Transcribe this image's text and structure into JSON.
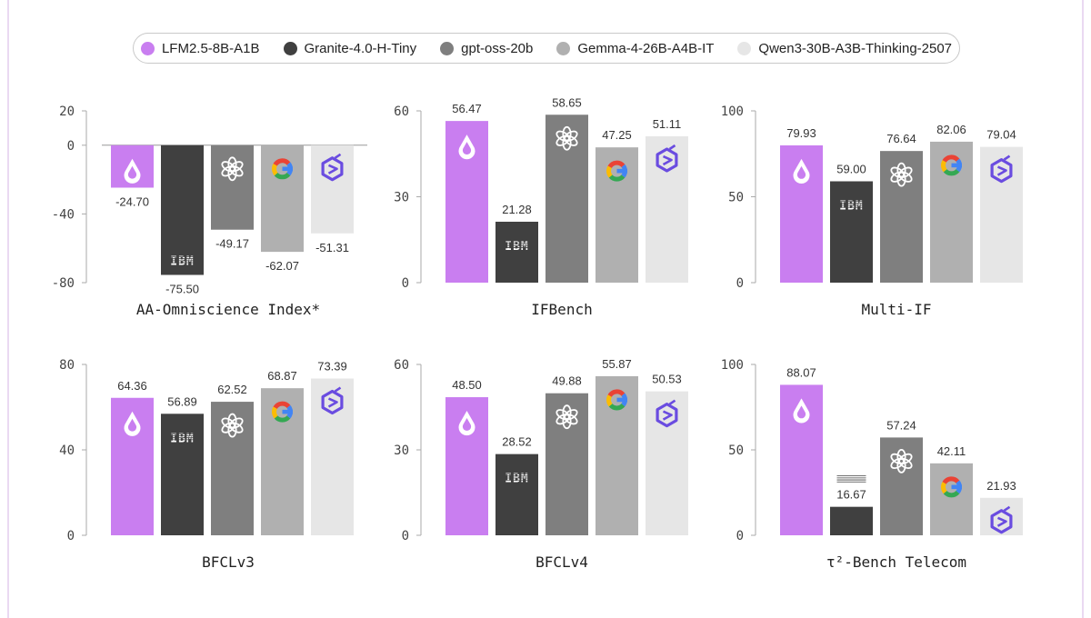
{
  "legend": [
    {
      "name": "LFM2.5-8B-A1B",
      "color": "#c97ef0"
    },
    {
      "name": "Granite-4.0-H-Tiny",
      "color": "#404040"
    },
    {
      "name": "gpt-oss-20b",
      "color": "#7f7f7f"
    },
    {
      "name": "Gemma-4-26B-A4B-IT",
      "color": "#b0b0b0"
    },
    {
      "name": "Qwen3-30B-A3B-Thinking-2507",
      "color": "#e6e6e6"
    }
  ],
  "icons": [
    "liquid-logo-icon",
    "ibm-logo-icon",
    "openai-logo-icon",
    "google-logo-icon",
    "qwen-logo-icon"
  ],
  "ibm_logo_text": "IBM",
  "chart_data": [
    {
      "type": "bar",
      "title": "AA-Omniscience Index*",
      "categories": [
        "LFM2.5-8B-A1B",
        "Granite-4.0-H-Tiny",
        "gpt-oss-20b",
        "Gemma-4-26B-A4B-IT",
        "Qwen3-30B-A3B-Thinking-2507"
      ],
      "values": [
        -24.7,
        -75.5,
        -49.17,
        -62.07,
        -51.31
      ],
      "labels": [
        "-24.70",
        "-75.50",
        "-49.17",
        "-62.07",
        "-51.31"
      ],
      "ylim": [
        -80,
        20
      ],
      "yticks": [
        20,
        0,
        -40,
        -80
      ],
      "zero_line": true
    },
    {
      "type": "bar",
      "title": "IFBench",
      "categories": [
        "LFM2.5-8B-A1B",
        "Granite-4.0-H-Tiny",
        "gpt-oss-20b",
        "Gemma-4-26B-A4B-IT",
        "Qwen3-30B-A3B-Thinking-2507"
      ],
      "values": [
        56.47,
        21.28,
        58.65,
        47.25,
        51.11
      ],
      "labels": [
        "56.47",
        "21.28",
        "58.65",
        "47.25",
        "51.11"
      ],
      "ylim": [
        0,
        60
      ],
      "yticks": [
        60,
        30,
        0
      ],
      "zero_line": false
    },
    {
      "type": "bar",
      "title": "Multi-IF",
      "categories": [
        "LFM2.5-8B-A1B",
        "Granite-4.0-H-Tiny",
        "gpt-oss-20b",
        "Gemma-4-26B-A4B-IT",
        "Qwen3-30B-A3B-Thinking-2507"
      ],
      "values": [
        79.93,
        59.0,
        76.64,
        82.06,
        79.04
      ],
      "labels": [
        "79.93",
        "59.00",
        "76.64",
        "82.06",
        "79.04"
      ],
      "ylim": [
        0,
        100
      ],
      "yticks": [
        100,
        50,
        0
      ],
      "zero_line": false
    },
    {
      "type": "bar",
      "title": "BFCLv3",
      "categories": [
        "LFM2.5-8B-A1B",
        "Granite-4.0-H-Tiny",
        "gpt-oss-20b",
        "Gemma-4-26B-A4B-IT",
        "Qwen3-30B-A3B-Thinking-2507"
      ],
      "values": [
        64.36,
        56.89,
        62.52,
        68.87,
        73.39
      ],
      "labels": [
        "64.36",
        "56.89",
        "62.52",
        "68.87",
        "73.39"
      ],
      "ylim": [
        0,
        80
      ],
      "yticks": [
        80,
        40,
        0
      ],
      "zero_line": false
    },
    {
      "type": "bar",
      "title": "BFCLv4",
      "categories": [
        "LFM2.5-8B-A1B",
        "Granite-4.0-H-Tiny",
        "gpt-oss-20b",
        "Gemma-4-26B-A4B-IT",
        "Qwen3-30B-A3B-Thinking-2507"
      ],
      "values": [
        48.5,
        28.52,
        49.88,
        55.87,
        50.53
      ],
      "labels": [
        "48.50",
        "28.52",
        "49.88",
        "55.87",
        "50.53"
      ],
      "ylim": [
        0,
        60
      ],
      "yticks": [
        60,
        30,
        0
      ],
      "zero_line": false
    },
    {
      "type": "bar",
      "title": "τ²-Bench Telecom",
      "categories": [
        "LFM2.5-8B-A1B",
        "Granite-4.0-H-Tiny",
        "gpt-oss-20b",
        "Gemma-4-26B-A4B-IT",
        "Qwen3-30B-A3B-Thinking-2507"
      ],
      "values": [
        88.07,
        16.67,
        57.24,
        42.11,
        21.93
      ],
      "labels": [
        "88.07",
        "16.67",
        "57.24",
        "42.11",
        "21.93"
      ],
      "ylim": [
        0,
        100
      ],
      "yticks": [
        100,
        50,
        0
      ],
      "zero_line": false
    }
  ]
}
